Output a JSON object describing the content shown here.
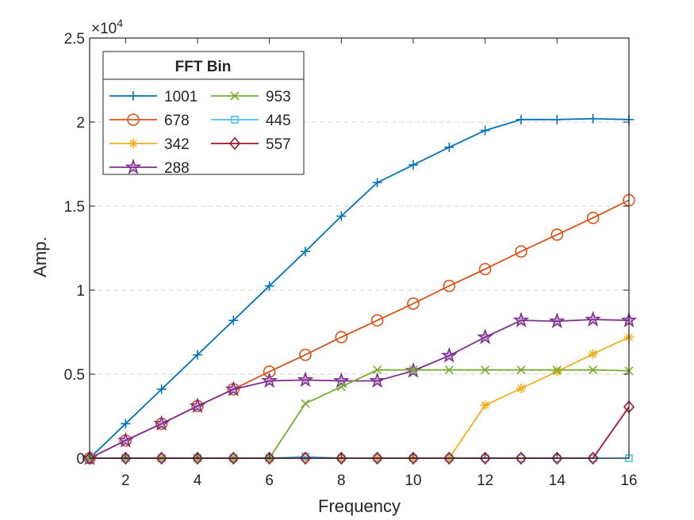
{
  "chart_data": {
    "type": "line",
    "xlabel": "Frequency",
    "ylabel": "Amp.",
    "exponent_label": "×10",
    "exponent_power": "4",
    "xlim": [
      1,
      16
    ],
    "ylim": [
      0,
      25000
    ],
    "x": [
      1,
      2,
      3,
      4,
      5,
      6,
      7,
      8,
      9,
      10,
      11,
      12,
      13,
      14,
      15,
      16
    ],
    "x_ticks": [
      2,
      4,
      6,
      8,
      10,
      12,
      14,
      16
    ],
    "x_tick_labels": [
      "2",
      "4",
      "6",
      "8",
      "10",
      "12",
      "14",
      "16"
    ],
    "y_ticks": [
      0,
      5000,
      10000,
      15000,
      20000,
      25000
    ],
    "y_tick_labels": [
      "0",
      "0.5",
      "1",
      "1.5",
      "2",
      "2.5"
    ],
    "y_grid": [
      5000,
      10000,
      15000,
      20000
    ],
    "grid": "horizontal dashed",
    "legend": {
      "title": "FFT Bin",
      "placement": "top-left",
      "columns": 2
    },
    "series": [
      {
        "name": "1001",
        "color": "#0072BD",
        "marker": "plus",
        "values": [
          0,
          2050,
          4100,
          6150,
          8200,
          10250,
          12300,
          14400,
          16400,
          17450,
          18500,
          19500,
          20150,
          20150,
          20200,
          20150
        ]
      },
      {
        "name": "678",
        "color": "#D95319",
        "marker": "circle",
        "values": [
          0,
          1050,
          2050,
          3100,
          4100,
          5150,
          6150,
          7200,
          8200,
          9200,
          10250,
          11250,
          12300,
          13300,
          14300,
          15350
        ]
      },
      {
        "name": "342",
        "color": "#EDB120",
        "marker": "asterisk",
        "values": [
          0,
          0,
          0,
          0,
          0,
          0,
          0,
          0,
          0,
          0,
          0,
          3150,
          4150,
          5150,
          6200,
          7200
        ]
      },
      {
        "name": "288",
        "color": "#7E2F8E",
        "marker": "pentagram",
        "values": [
          0,
          1050,
          2050,
          3100,
          4100,
          4600,
          4650,
          4600,
          4600,
          5200,
          6100,
          7200,
          8200,
          8150,
          8250,
          8200
        ]
      },
      {
        "name": "953",
        "color": "#77AC30",
        "marker": "cross",
        "values": [
          0,
          0,
          0,
          0,
          0,
          0,
          3250,
          4250,
          5250,
          5250,
          5250,
          5250,
          5250,
          5250,
          5250,
          5200
        ]
      },
      {
        "name": "445",
        "color": "#4DBEEE",
        "marker": "square",
        "values": [
          0,
          0,
          0,
          0,
          0,
          0,
          100,
          0,
          0,
          0,
          0,
          0,
          0,
          0,
          0,
          0
        ]
      },
      {
        "name": "557",
        "color": "#A2142F",
        "marker": "diamond",
        "values": [
          0,
          0,
          0,
          0,
          0,
          0,
          0,
          0,
          0,
          0,
          0,
          0,
          0,
          0,
          0,
          3050
        ]
      }
    ]
  }
}
